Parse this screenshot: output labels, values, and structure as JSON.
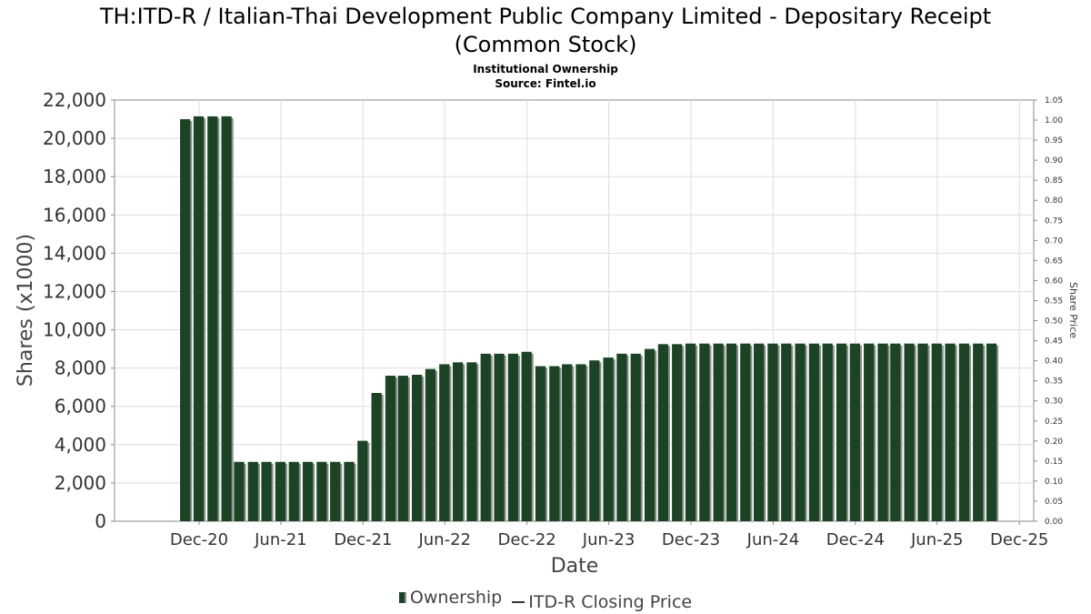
{
  "title_line1": "TH:ITD-R / Italian-Thai Development Public Company Limited - Depositary Receipt",
  "title_line2": "(Common Stock)",
  "subtitle_line1": "Institutional Ownership",
  "subtitle_line2": "Source: Fintel.io",
  "colors": {
    "bar": "#1a4423",
    "bar_shadow": "#8a8f8a",
    "grid": "#dddddd",
    "axis": "#888888"
  },
  "legend": {
    "ownership": "Ownership",
    "price": "ITD-R Closing Price"
  },
  "chart_data": {
    "type": "bar",
    "xlabel": "Date",
    "ylabel": "Shares (x1000)",
    "y2label": "Share Price",
    "ylim": [
      0,
      22000
    ],
    "y2lim": [
      0,
      1.05
    ],
    "xlim": [
      "2020-09-01",
      "2025-12-31"
    ],
    "y_ticks": [
      "0",
      "2,000",
      "4,000",
      "6,000",
      "8,000",
      "10,000",
      "12,000",
      "14,000",
      "16,000",
      "18,000",
      "20,000",
      "22,000"
    ],
    "y2_ticks": [
      "0.00",
      "0.05",
      "0.10",
      "0.15",
      "0.20",
      "0.25",
      "0.30",
      "0.35",
      "0.40",
      "0.45",
      "0.50",
      "0.55",
      "0.60",
      "0.65",
      "0.70",
      "0.75",
      "0.80",
      "0.85",
      "0.90",
      "0.95",
      "1.00",
      "1.05"
    ],
    "x_ticks": [
      {
        "label": "Dec-20",
        "date": "2020-12-01"
      },
      {
        "label": "Jun-21",
        "date": "2021-06-01"
      },
      {
        "label": "Dec-21",
        "date": "2021-12-01"
      },
      {
        "label": "Jun-22",
        "date": "2022-06-01"
      },
      {
        "label": "Dec-22",
        "date": "2022-12-01"
      },
      {
        "label": "Jun-23",
        "date": "2023-06-01"
      },
      {
        "label": "Dec-23",
        "date": "2023-12-01"
      },
      {
        "label": "Jun-24",
        "date": "2024-06-01"
      },
      {
        "label": "Dec-24",
        "date": "2024-12-01"
      },
      {
        "label": "Jun-25",
        "date": "2025-06-01"
      },
      {
        "label": "Dec-25",
        "date": "2025-12-01"
      }
    ],
    "series": [
      {
        "name": "Ownership",
        "points": [
          {
            "x": "2020-10-31",
            "y": 21000
          },
          {
            "x": "2020-11-30",
            "y": 21150
          },
          {
            "x": "2020-12-31",
            "y": 21150
          },
          {
            "x": "2021-01-31",
            "y": 21150
          },
          {
            "x": "2021-02-28",
            "y": 3100
          },
          {
            "x": "2021-03-31",
            "y": 3100
          },
          {
            "x": "2021-04-30",
            "y": 3100
          },
          {
            "x": "2021-05-31",
            "y": 3100
          },
          {
            "x": "2021-06-30",
            "y": 3100
          },
          {
            "x": "2021-07-31",
            "y": 3100
          },
          {
            "x": "2021-08-31",
            "y": 3100
          },
          {
            "x": "2021-09-30",
            "y": 3100
          },
          {
            "x": "2021-10-31",
            "y": 3100
          },
          {
            "x": "2021-11-30",
            "y": 4200
          },
          {
            "x": "2021-12-31",
            "y": 6700
          },
          {
            "x": "2022-01-31",
            "y": 7600
          },
          {
            "x": "2022-02-28",
            "y": 7600
          },
          {
            "x": "2022-03-31",
            "y": 7650
          },
          {
            "x": "2022-04-30",
            "y": 7950
          },
          {
            "x": "2022-05-31",
            "y": 8200
          },
          {
            "x": "2022-06-30",
            "y": 8300
          },
          {
            "x": "2022-07-31",
            "y": 8300
          },
          {
            "x": "2022-08-31",
            "y": 8750
          },
          {
            "x": "2022-09-30",
            "y": 8750
          },
          {
            "x": "2022-10-31",
            "y": 8750
          },
          {
            "x": "2022-11-30",
            "y": 8850
          },
          {
            "x": "2022-12-31",
            "y": 8100
          },
          {
            "x": "2023-01-31",
            "y": 8100
          },
          {
            "x": "2023-02-28",
            "y": 8200
          },
          {
            "x": "2023-03-31",
            "y": 8200
          },
          {
            "x": "2023-04-30",
            "y": 8400
          },
          {
            "x": "2023-05-31",
            "y": 8550
          },
          {
            "x": "2023-06-30",
            "y": 8750
          },
          {
            "x": "2023-07-31",
            "y": 8750
          },
          {
            "x": "2023-08-31",
            "y": 9000
          },
          {
            "x": "2023-09-30",
            "y": 9250
          },
          {
            "x": "2023-10-31",
            "y": 9250
          },
          {
            "x": "2023-11-30",
            "y": 9280
          },
          {
            "x": "2023-12-31",
            "y": 9280
          },
          {
            "x": "2024-01-31",
            "y": 9280
          },
          {
            "x": "2024-02-29",
            "y": 9280
          },
          {
            "x": "2024-03-31",
            "y": 9280
          },
          {
            "x": "2024-04-30",
            "y": 9280
          },
          {
            "x": "2024-05-31",
            "y": 9280
          },
          {
            "x": "2024-06-30",
            "y": 9280
          },
          {
            "x": "2024-07-31",
            "y": 9280
          },
          {
            "x": "2024-08-31",
            "y": 9280
          },
          {
            "x": "2024-09-30",
            "y": 9280
          },
          {
            "x": "2024-10-31",
            "y": 9280
          },
          {
            "x": "2024-11-30",
            "y": 9280
          },
          {
            "x": "2024-12-31",
            "y": 9280
          },
          {
            "x": "2025-01-31",
            "y": 9280
          },
          {
            "x": "2025-02-28",
            "y": 9280
          },
          {
            "x": "2025-03-31",
            "y": 9280
          },
          {
            "x": "2025-04-30",
            "y": 9280
          },
          {
            "x": "2025-05-31",
            "y": 9280
          },
          {
            "x": "2025-06-30",
            "y": 9280
          },
          {
            "x": "2025-07-31",
            "y": 9280
          },
          {
            "x": "2025-08-31",
            "y": 9280
          },
          {
            "x": "2025-09-30",
            "y": 9280
          }
        ]
      },
      {
        "name": "ITD-R Closing Price",
        "points": []
      }
    ],
    "grid": true,
    "legend_position": "bottom"
  }
}
